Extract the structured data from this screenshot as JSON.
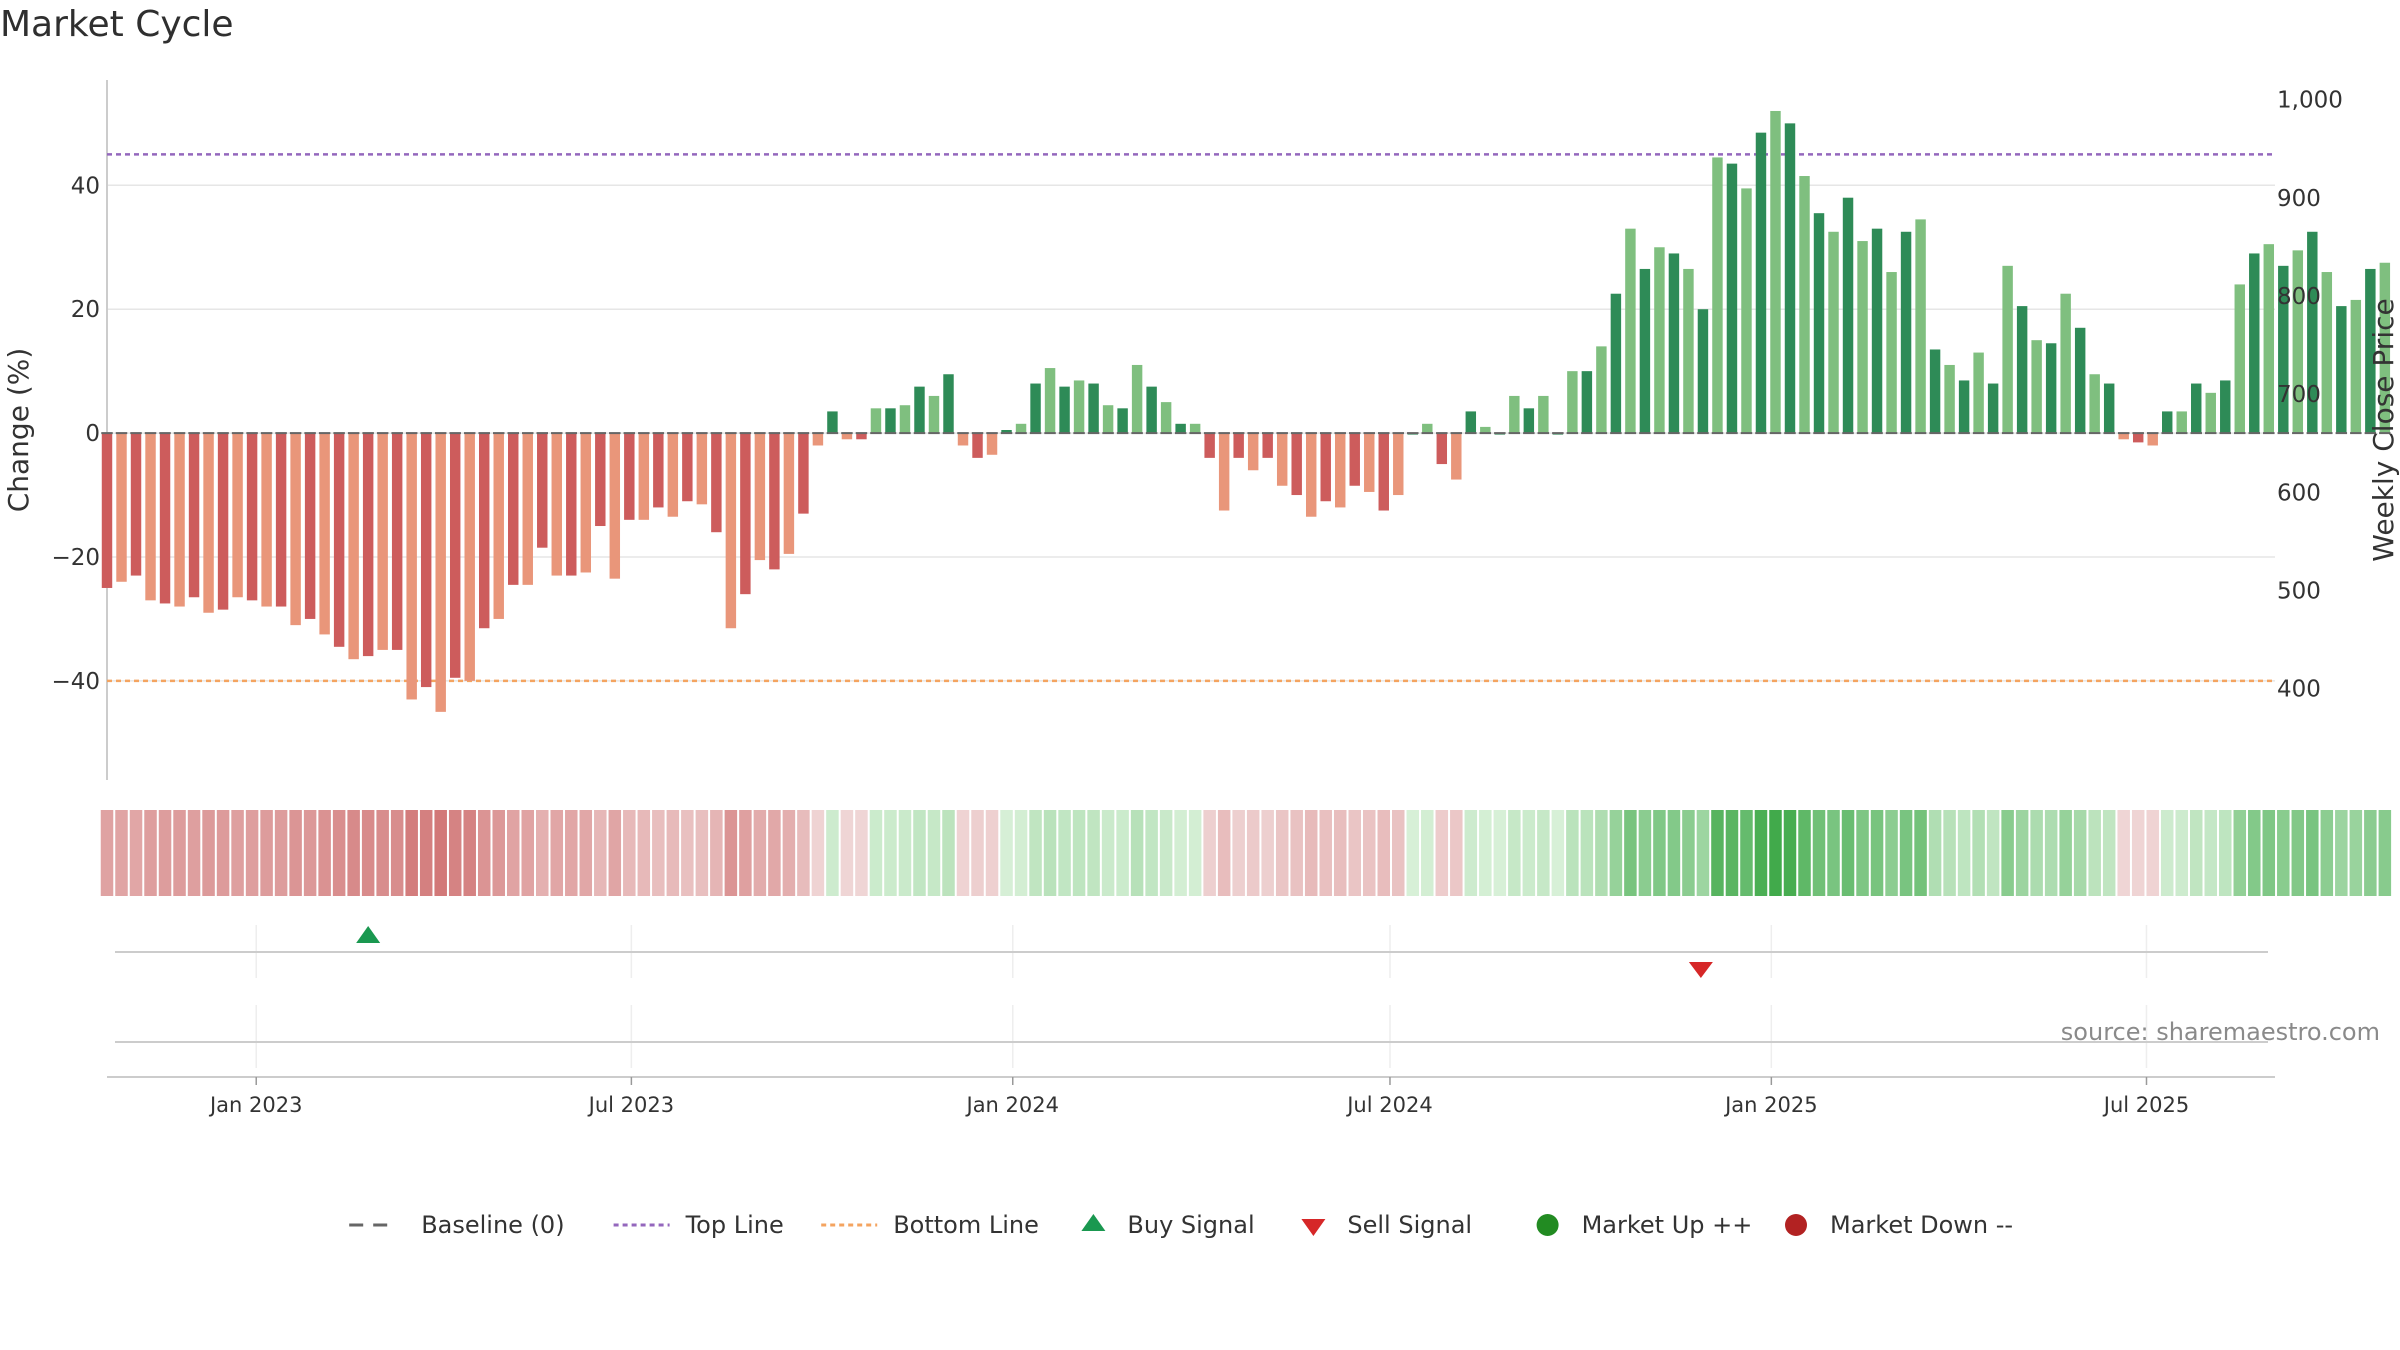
{
  "title": "Market Cycle",
  "source": "source: sharemaestro.com",
  "colors": {
    "up_dark": "#2e8b57",
    "up_light": "#7fbf7f",
    "down_dark": "#cd5c5c",
    "down_light": "#e9967a",
    "top_line": "#9467bd",
    "bottom_line": "#f4a460",
    "baseline": "#666666",
    "buy": "#1a9850",
    "sell": "#d62728",
    "market_up": "#228b22",
    "market_down": "#b22222"
  },
  "chart_data": {
    "type": "bar",
    "ylabel": "Change (%)",
    "y2label": "Weekly Close Price",
    "ylim": [
      -56,
      57
    ],
    "y_ticks": [
      -40,
      -20,
      0,
      20,
      40
    ],
    "y_tick_labels": [
      "−40",
      "−20",
      "0",
      "20",
      "40"
    ],
    "y2lim": [
      307,
      1020
    ],
    "y2_ticks": [
      400,
      500,
      600,
      700,
      800,
      900,
      1000
    ],
    "y2_tick_labels": [
      "400",
      "500",
      "600",
      "700",
      "800",
      "900",
      "1,000"
    ],
    "top_line": 45,
    "bottom_line": -40,
    "x_start": "2022-10-21",
    "x_end": "2025-09-01",
    "x_ticks": [
      "2023-01-01",
      "2023-07-01",
      "2024-01-01",
      "2024-07-01",
      "2025-01-01",
      "2025-07-01"
    ],
    "x_tick_labels": [
      "Jan 2023",
      "Jul 2023",
      "Jan 2024",
      "Jul 2024",
      "Jan 2025",
      "Jul 2025"
    ],
    "first_week": "2022-10-21",
    "values": [
      -25,
      -24,
      -23,
      -27,
      -27.5,
      -28,
      -26.5,
      -29,
      -28.5,
      -26.5,
      -27,
      -28,
      -28,
      -31,
      -30,
      -32.5,
      -34.5,
      -36.5,
      -36,
      -35,
      -35,
      -43,
      -41,
      -45,
      -39.5,
      -40,
      -31.5,
      -30,
      -24.5,
      -24.5,
      -18.5,
      -23,
      -23,
      -22.5,
      -15,
      -23.5,
      -14,
      -14,
      -12,
      -13.5,
      -11,
      -11.5,
      -16,
      -31.5,
      -26,
      -20.5,
      -22,
      -19.5,
      -13,
      -2,
      3.5,
      -1,
      -1,
      4,
      4,
      4.5,
      7.5,
      6,
      9.5,
      -2,
      -4,
      -3.5,
      0.5,
      1.5,
      8,
      10.5,
      7.5,
      8.5,
      8,
      4.5,
      4,
      11,
      7.5,
      5,
      1.5,
      1.5,
      -4,
      -12.5,
      -4,
      -6,
      -4,
      -8.5,
      -10,
      -13.5,
      -11,
      -12,
      -8.5,
      -9.5,
      -12.5,
      -10,
      0,
      1.5,
      -5,
      -7.5,
      3.5,
      1,
      0,
      6,
      4,
      6,
      0,
      10,
      10,
      14,
      22.5,
      33,
      26.5,
      30,
      29,
      26.5,
      20,
      44.5,
      43.5,
      39.5,
      48.5,
      52,
      50,
      41.5,
      35.5,
      32.5,
      38,
      31,
      33,
      26,
      32.5,
      34.5,
      13.5,
      11,
      8.5,
      13,
      8,
      27,
      20.5,
      15,
      14.5,
      22.5,
      17,
      9.5,
      8,
      -1,
      -1.5,
      -2,
      3.5,
      3.5,
      8,
      6.5,
      8.5,
      24,
      29,
      30.5,
      27,
      29.5,
      32.5,
      26,
      20.5,
      21.5,
      26.5,
      27.5
    ],
    "shade_values": [
      -25,
      -24,
      -23,
      -27,
      -27.5,
      -28,
      -26.5,
      -29,
      -28.5,
      -26.5,
      -27,
      -28,
      -28,
      -31,
      -30,
      -32.5,
      -34.5,
      -36.5,
      -36,
      -35,
      -35,
      -43,
      -41,
      -45,
      -39.5,
      -40,
      -31.5,
      -30,
      -24.5,
      -24.5,
      -18.5,
      -23,
      -23,
      -22.5,
      -15,
      -23.5,
      -14,
      -14,
      -12,
      -13.5,
      -11,
      -11.5,
      -16,
      -31.5,
      -26,
      -20.5,
      -22,
      -19.5,
      -13,
      -2,
      3.5,
      -1,
      -1,
      4,
      4,
      4.5,
      7.5,
      6,
      9.5,
      -2,
      -4,
      -3.5,
      0.5,
      1.5,
      8,
      10.5,
      7.5,
      8.5,
      8,
      4.5,
      4,
      11,
      7.5,
      5,
      1.5,
      1.5,
      -4,
      -12.5,
      -4,
      -6,
      -4,
      -8.5,
      -10,
      -13.5,
      -11,
      -12,
      -8.5,
      -9.5,
      -12.5,
      -10,
      0,
      1.5,
      -5,
      -7.5,
      3.5,
      1,
      0,
      6,
      4,
      6,
      0,
      10,
      10,
      14,
      22.5,
      33,
      26.5,
      30,
      29,
      26.5,
      20,
      44.5,
      43.5,
      39.5,
      48.5,
      52,
      50,
      41.5,
      35.5,
      32.5,
      38,
      31,
      33,
      26,
      32.5,
      34.5,
      13.5,
      11,
      8.5,
      13,
      8,
      27,
      20.5,
      15,
      14.5,
      22.5,
      17,
      9.5,
      8,
      -1,
      -1.5,
      -2,
      3.5,
      3.5,
      8,
      6.5,
      8.5,
      24,
      29,
      30.5,
      27,
      29.5,
      32.5,
      26,
      20.5,
      21.5,
      26.5,
      27.5
    ],
    "signals": [
      {
        "type": "buy",
        "date": "2023-02-24"
      },
      {
        "type": "sell",
        "date": "2024-11-28"
      }
    ],
    "legend": [
      {
        "key": "baseline",
        "label": "Baseline (0)"
      },
      {
        "key": "top",
        "label": "Top Line"
      },
      {
        "key": "bottom",
        "label": "Bottom Line"
      },
      {
        "key": "buy",
        "label": "Buy Signal"
      },
      {
        "key": "sell",
        "label": "Sell Signal"
      },
      {
        "key": "up",
        "label": "Market Up ++"
      },
      {
        "key": "down",
        "label": "Market Down --"
      }
    ],
    "legend_position": "bottom-center",
    "grid": true
  }
}
